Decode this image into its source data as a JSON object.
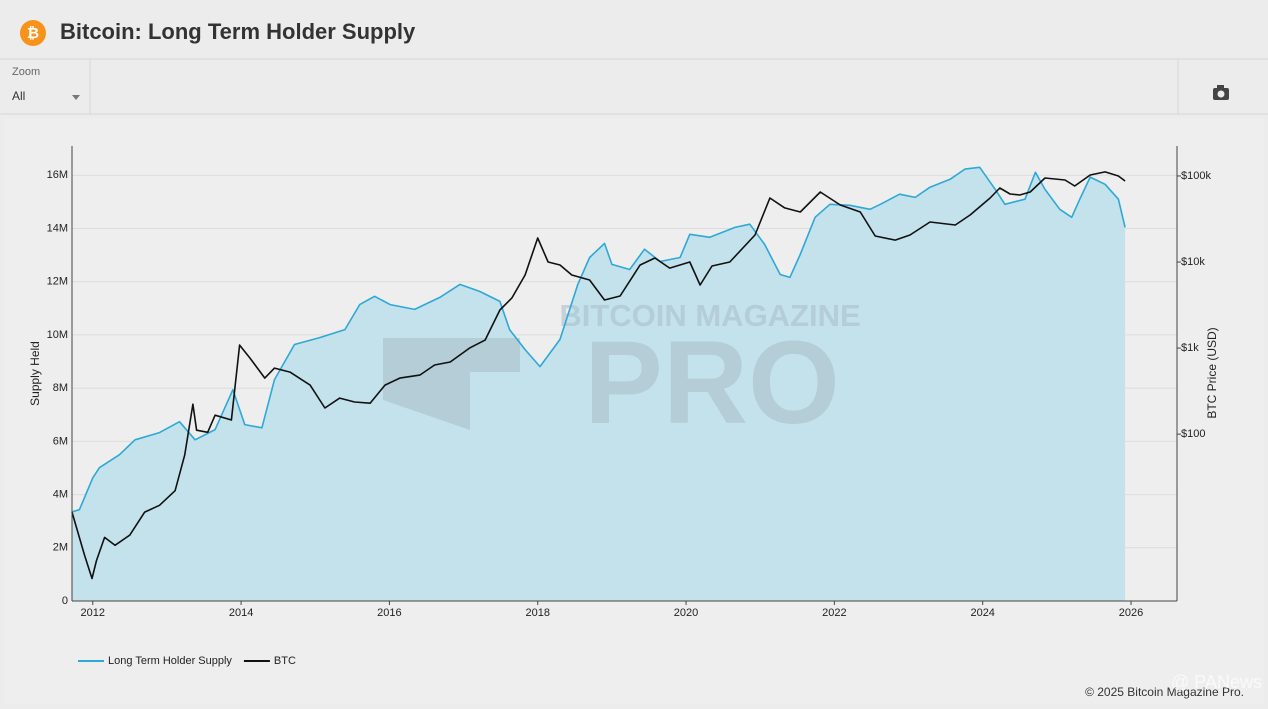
{
  "chart_data": {
    "type": "line",
    "title": "Bitcoin: Long Term Holder Supply",
    "zoom_label": "Zoom",
    "zoom_value": "All",
    "ylabel": "Supply Held",
    "y2label": "BTC Price (USD)",
    "watermark": {
      "top": "BITCOIN MAGAZINE",
      "main": "PRO"
    },
    "copyright": "© 2025 Bitcoin Magazine Pro.",
    "overlay_watermark": "@ PANews",
    "xlim": [
      2011.72,
      2026.62
    ],
    "xticks": [
      2012,
      2014,
      2016,
      2018,
      2020,
      2022,
      2024,
      2026
    ],
    "ylim": [
      0,
      17100000
    ],
    "yticks": [
      0,
      {
        "value": 2000000,
        "label": "2M"
      },
      {
        "value": 4000000,
        "label": "4M"
      },
      {
        "value": 6000000,
        "label": "6M"
      },
      {
        "value": 8000000,
        "label": "8M"
      },
      {
        "value": 10000000,
        "label": "10M"
      },
      {
        "value": 12000000,
        "label": "12M"
      },
      {
        "value": 14000000,
        "label": "14M"
      },
      {
        "value": 16000000,
        "label": "16M"
      }
    ],
    "y2lim": [
      1.15,
      223000
    ],
    "y2scale": "log",
    "y2ticks": [
      {
        "value": 100,
        "label": "$100"
      },
      {
        "value": 1000,
        "label": "$1k"
      },
      {
        "value": 10000,
        "label": "$10k"
      },
      {
        "value": 100000,
        "label": "$100k"
      }
    ],
    "grid": true,
    "legend": "bottom-left",
    "series": [
      {
        "name": "Long Term Holder Supply",
        "color": "#2ea8d5",
        "fill": "#c4e2ec",
        "x": [
          2011.72,
          2011.82,
          2012.0,
          2012.09,
          2012.36,
          2012.57,
          2012.9,
          2013.17,
          2013.38,
          2013.65,
          2013.89,
          2014.05,
          2014.28,
          2014.45,
          2014.72,
          2015.06,
          2015.4,
          2015.6,
          2015.8,
          2016.01,
          2016.34,
          2016.68,
          2016.95,
          2017.22,
          2017.49,
          2017.62,
          2017.83,
          2018.03,
          2018.3,
          2018.54,
          2018.7,
          2018.9,
          2019.0,
          2019.24,
          2019.44,
          2019.65,
          2019.92,
          2020.05,
          2020.32,
          2020.66,
          2020.86,
          2021.06,
          2021.27,
          2021.4,
          2021.54,
          2021.74,
          2021.94,
          2022.21,
          2022.48,
          2022.62,
          2022.88,
          2023.09,
          2023.29,
          2023.56,
          2023.76,
          2023.96,
          2024.17,
          2024.3,
          2024.57,
          2024.71,
          2024.84,
          2025.04,
          2025.2,
          2025.31,
          2025.45,
          2025.65,
          2025.83,
          2025.92
        ],
        "values": [
          3350000,
          3430000,
          4630000,
          5010000,
          5500000,
          6060000,
          6330000,
          6740000,
          6060000,
          6440000,
          7940000,
          6630000,
          6510000,
          8320000,
          9640000,
          9900000,
          10200000,
          11140000,
          11450000,
          11140000,
          10960000,
          11410000,
          11900000,
          11630000,
          11260000,
          10200000,
          9450000,
          8810000,
          9830000,
          11900000,
          12910000,
          13440000,
          12650000,
          12460000,
          13220000,
          12760000,
          12910000,
          13780000,
          13670000,
          14040000,
          14160000,
          13400000,
          12270000,
          12160000,
          13030000,
          14420000,
          14910000,
          14870000,
          14720000,
          14910000,
          15290000,
          15170000,
          15550000,
          15850000,
          16230000,
          16300000,
          15470000,
          14910000,
          15100000,
          16110000,
          15470000,
          14720000,
          14420000,
          15100000,
          15930000,
          15660000,
          15100000,
          14040000
        ]
      },
      {
        "name": "BTC",
        "color": "#111111",
        "axis": "y2",
        "x": [
          2011.72,
          2011.89,
          2011.99,
          2012.05,
          2012.16,
          2012.3,
          2012.5,
          2012.7,
          2012.9,
          2013.11,
          2013.24,
          2013.35,
          2013.4,
          2013.55,
          2013.65,
          2013.87,
          2013.98,
          2014.12,
          2014.32,
          2014.45,
          2014.66,
          2014.93,
          2015.13,
          2015.33,
          2015.53,
          2015.74,
          2015.94,
          2016.14,
          2016.41,
          2016.61,
          2016.82,
          2017.08,
          2017.29,
          2017.49,
          2017.65,
          2017.83,
          2018.0,
          2018.14,
          2018.3,
          2018.46,
          2018.7,
          2018.9,
          2019.11,
          2019.38,
          2019.58,
          2019.78,
          2020.05,
          2020.19,
          2020.35,
          2020.59,
          2020.93,
          2021.13,
          2021.33,
          2021.54,
          2021.81,
          2022.08,
          2022.35,
          2022.55,
          2022.82,
          2023.02,
          2023.29,
          2023.63,
          2023.83,
          2024.1,
          2024.23,
          2024.37,
          2024.5,
          2024.64,
          2024.84,
          2025.11,
          2025.24,
          2025.45,
          2025.65,
          2025.83,
          2025.92
        ],
        "values": [
          12.4,
          3.9,
          2.1,
          3.4,
          6.3,
          5.1,
          6.7,
          12.4,
          14.9,
          22,
          57,
          223,
          111,
          105,
          166,
          146,
          1084,
          765,
          448,
          585,
          526,
          371,
          201,
          262,
          236,
          229,
          371,
          448,
          485,
          635,
          688,
          1000,
          1239,
          2767,
          3812,
          7063,
          19000,
          10000,
          9230,
          7063,
          6180,
          3615,
          4025,
          9230,
          11140,
          8510,
          10000,
          5400,
          8980,
          10000,
          20600,
          55500,
          42500,
          38100,
          65200,
          46000,
          38100,
          20050,
          18000,
          20600,
          29200,
          26900,
          35200,
          55500,
          72500,
          61800,
          60100,
          65200,
          94800,
          89700,
          76500,
          102700,
          111400,
          100000,
          87500
        ]
      }
    ]
  }
}
